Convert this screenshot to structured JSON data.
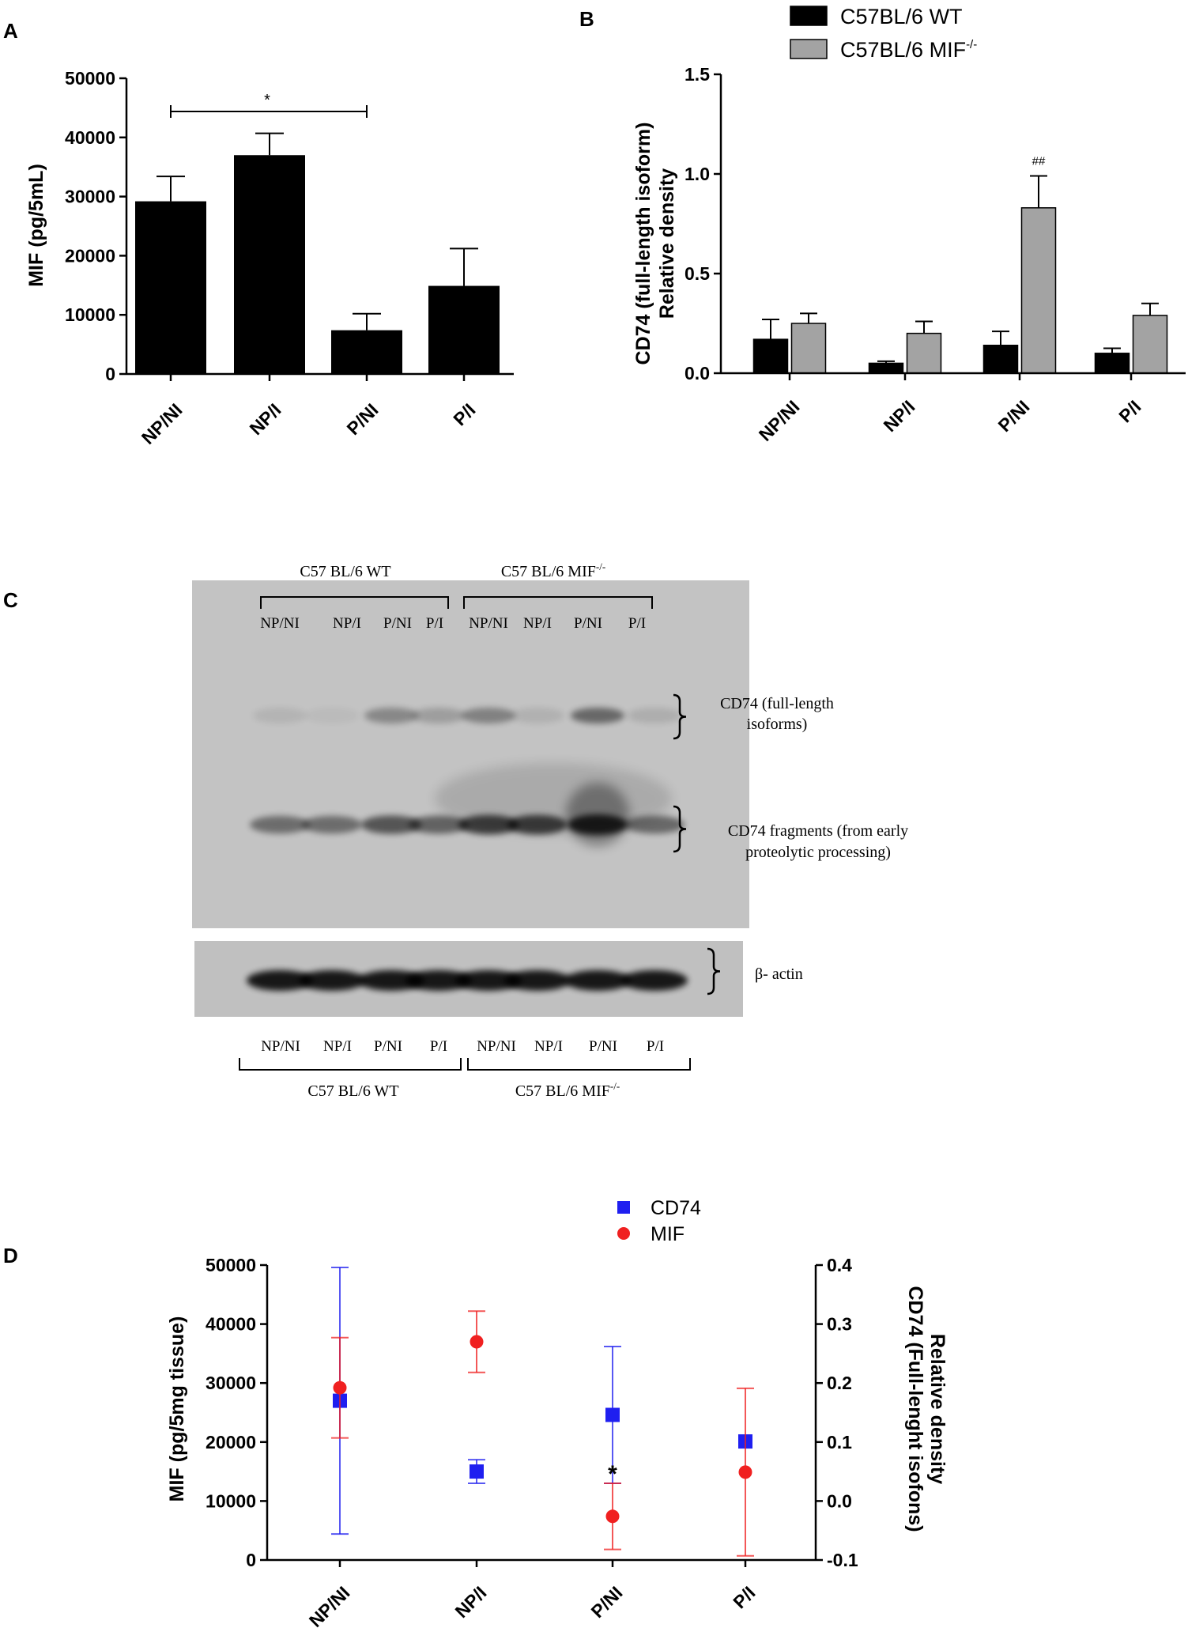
{
  "chart_data": [
    {
      "panel": "A",
      "type": "bar",
      "ylabel": "MIF (pg/5mL)",
      "categories": [
        "NP/NI",
        "NP/I",
        "P/NI",
        "P/I"
      ],
      "values": [
        29200,
        37000,
        7400,
        14900
      ],
      "errors": [
        4200,
        3700,
        2800,
        6300
      ],
      "ylim": [
        0,
        50000
      ],
      "yticks": [
        "0",
        "10000",
        "20000",
        "30000",
        "40000",
        "50000"
      ],
      "significance": {
        "label": "*",
        "from": "NP/NI",
        "to": "P/NI"
      },
      "color": "#000000"
    },
    {
      "panel": "B",
      "type": "bar",
      "ylabel_line1": "CD74 (full-length isoform)",
      "ylabel_line2": "Relative density",
      "categories": [
        "NP/NI",
        "NP/I",
        "P/NI",
        "P/I"
      ],
      "series": [
        {
          "name": "C57BL/6 WT",
          "values": [
            0.17,
            0.05,
            0.14,
            0.1
          ],
          "errors": [
            0.1,
            0.01,
            0.07,
            0.025
          ],
          "color": "#000000"
        },
        {
          "name": "C57BL/6 MIF",
          "sup": "-/-",
          "values": [
            0.25,
            0.2,
            0.83,
            0.29
          ],
          "errors": [
            0.05,
            0.06,
            0.16,
            0.06
          ],
          "color": "#a3a3a3"
        }
      ],
      "ylim": [
        0,
        1.5
      ],
      "yticks": [
        "0.0",
        "0.5",
        "1.0",
        "1.5"
      ],
      "annotation": {
        "label": "##",
        "category": "P/NI"
      },
      "legend_position": "top"
    },
    {
      "panel": "D",
      "type": "scatter",
      "ylabel_left": "MIF (pg/5mg tissue)",
      "ylabel_right_line1": "CD74 (Full-lenght isofons)",
      "ylabel_right_line2": "Relative density",
      "categories": [
        "NP/NI",
        "NP/I",
        "P/NI",
        "P/I"
      ],
      "ylim_left": [
        0,
        50000
      ],
      "yticks_left": [
        "0",
        "10000",
        "20000",
        "30000",
        "40000",
        "50000"
      ],
      "ylim_right": [
        -0.1,
        0.4
      ],
      "yticks_right": [
        "-0.1",
        "0.0",
        "0.1",
        "0.2",
        "0.3",
        "0.4"
      ],
      "series": [
        {
          "name": "CD74",
          "axis": "right",
          "marker": "square",
          "color": "#1f1ff0",
          "values": [
            0.17,
            0.05,
            0.146,
            0.101
          ],
          "errors": [
            0.226,
            0.02,
            0.116,
            0.0
          ]
        },
        {
          "name": "MIF",
          "axis": "left",
          "marker": "circle",
          "color": "#f02020",
          "values": [
            29200,
            37000,
            7400,
            14900
          ],
          "errors": [
            8500,
            5200,
            5600,
            14200
          ]
        }
      ],
      "annotation": {
        "label": "*",
        "category": "P/NI"
      },
      "legend_position": "top"
    }
  ],
  "panel_labels": {
    "a": "A",
    "b": "B",
    "c": "C",
    "d": "D"
  },
  "blot": {
    "top_group_wt": "C57 BL/6 WT",
    "top_group_ko_text": "C57 BL/6 MIF",
    "top_group_ko_sup": "-/-",
    "lanes_top": [
      "NP/NI",
      "NP/I",
      "P/NI",
      "P/I",
      "NP/NI",
      "NP/I",
      "P/NI",
      "P/I"
    ],
    "band1_line1": "CD74 (full-length",
    "band1_line2": "isoforms)",
    "band2_line1": "CD74 fragments (from early",
    "band2_line2": "proteolytic processing)",
    "actin_label": "β- actin",
    "lanes_bottom": [
      "NP/NI",
      "NP/I",
      "P/NI",
      "P/I",
      "NP/NI",
      "NP/I",
      "P/NI",
      "P/I"
    ],
    "bottom_group_wt": "C57 BL/6 WT",
    "bottom_group_ko_text": "C57 BL/6 MIF",
    "bottom_group_ko_sup": "-/-"
  }
}
